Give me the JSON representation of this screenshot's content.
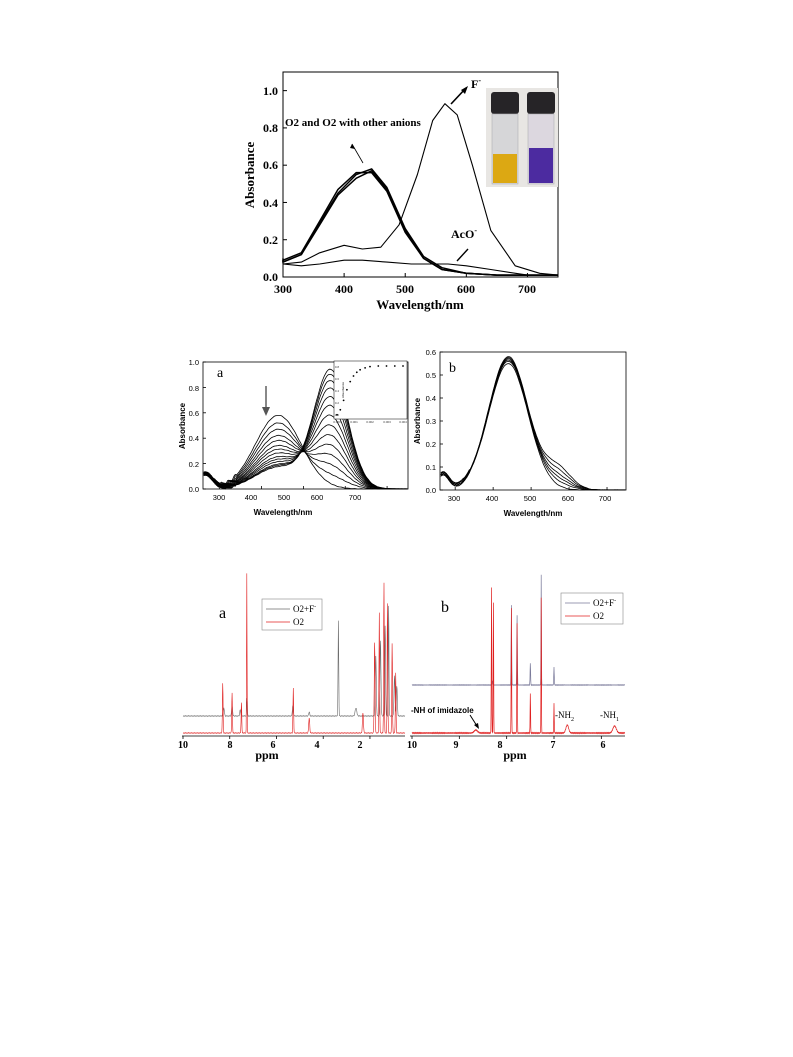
{
  "figure": {
    "top": {
      "annotations": {
        "o2": "O2 and O2 with other anions",
        "f": "F",
        "f_sup": "-",
        "aco": "AcO",
        "aco_sup": "-"
      },
      "chart_data": {
        "type": "line",
        "xlabel": "Wavelength/nm",
        "ylabel": "Absorbance",
        "xlim": [
          300,
          750
        ],
        "ylim": [
          0,
          1.1
        ],
        "xticks": [
          "300",
          "400",
          "500",
          "600",
          "700"
        ],
        "yticks": [
          "0.0",
          "0.2",
          "0.4",
          "0.6",
          "0.8",
          "1.0"
        ],
        "series": [
          {
            "x": [
              270,
              300,
              330,
              360,
              390,
              420,
              445,
              470,
              500,
              530,
              560,
              600,
              650,
              700,
              750
            ],
            "y": [
              0.09,
              0.08,
              0.12,
              0.28,
              0.44,
              0.53,
              0.57,
              0.47,
              0.25,
              0.1,
              0.04,
              0.02,
              0.01,
              0.01,
              0.01
            ]
          },
          {
            "x": [
              270,
              300,
              330,
              360,
              390,
              420,
              445,
              470,
              500,
              530,
              560,
              600,
              650,
              700,
              750
            ],
            "y": [
              0.09,
              0.08,
              0.12,
              0.29,
              0.45,
              0.55,
              0.58,
              0.48,
              0.26,
              0.11,
              0.05,
              0.02,
              0.01,
              0.01,
              0.01
            ]
          },
          {
            "x": [
              270,
              300,
              330,
              360,
              390,
              420,
              445,
              470,
              500,
              530,
              560,
              600,
              650,
              700,
              750
            ],
            "y": [
              0.1,
              0.09,
              0.13,
              0.3,
              0.47,
              0.56,
              0.56,
              0.46,
              0.24,
              0.1,
              0.04,
              0.02,
              0.01,
              0.01,
              0.01
            ]
          },
          {
            "x": [
              270,
              300,
              330,
              360,
              400,
              430,
              460,
              490,
              520,
              545,
              565,
              585,
              610,
              640,
              680,
              720,
              750
            ],
            "y": [
              0.09,
              0.07,
              0.08,
              0.13,
              0.17,
              0.15,
              0.16,
              0.28,
              0.55,
              0.84,
              0.93,
              0.87,
              0.6,
              0.25,
              0.06,
              0.02,
              0.01
            ]
          },
          {
            "x": [
              270,
              300,
              330,
              360,
              400,
              430,
              470,
              510,
              540,
              570,
              600,
              640,
              700,
              750
            ],
            "y": [
              0.08,
              0.07,
              0.06,
              0.07,
              0.09,
              0.09,
              0.08,
              0.07,
              0.07,
              0.07,
              0.06,
              0.04,
              0.01,
              0.01
            ]
          }
        ]
      }
    },
    "mid_a": {
      "label": "a",
      "chart_data": {
        "type": "line",
        "xlabel": "Wavelength/nm",
        "ylabel": "Absorbance",
        "xlim": [
          260,
          750
        ],
        "ylim": [
          0,
          1.0
        ],
        "xticks": [
          "300",
          "400",
          "500",
          "600",
          "700"
        ],
        "yticks": [
          "0.0",
          "0.2",
          "0.4",
          "0.6",
          "0.8",
          "1.0"
        ],
        "series": [
          {
            "peak1": 0.58,
            "peak2": 0.0
          },
          {
            "peak1": 0.52,
            "peak2": 0.08
          },
          {
            "peak1": 0.47,
            "peak2": 0.16
          },
          {
            "peak1": 0.42,
            "peak2": 0.24
          },
          {
            "peak1": 0.38,
            "peak2": 0.32
          },
          {
            "peak1": 0.34,
            "peak2": 0.4
          },
          {
            "peak1": 0.31,
            "peak2": 0.48
          },
          {
            "peak1": 0.28,
            "peak2": 0.56
          },
          {
            "peak1": 0.25,
            "peak2": 0.64
          },
          {
            "peak1": 0.23,
            "peak2": 0.71
          },
          {
            "peak1": 0.21,
            "peak2": 0.78
          },
          {
            "peak1": 0.19,
            "peak2": 0.84
          },
          {
            "peak1": 0.18,
            "peak2": 0.89
          },
          {
            "peak1": 0.17,
            "peak2": 0.93
          }
        ]
      },
      "inset": {
        "ylabel": "Absorbance",
        "xticks": [
          "0.000",
          "0.001",
          "0.002",
          "0.003",
          "0.004"
        ],
        "yticks": [
          "0.8",
          "0.6",
          "0.4",
          "0.2",
          "0.0"
        ],
        "chart_data": {
          "type": "scatter",
          "x": [
            0.0,
            0.0002,
            0.0004,
            0.0006,
            0.0008,
            0.001,
            0.0012,
            0.0014,
            0.0017,
            0.002,
            0.0025,
            0.003,
            0.0035,
            0.004
          ],
          "y": [
            0.02,
            0.1,
            0.25,
            0.42,
            0.55,
            0.64,
            0.7,
            0.74,
            0.77,
            0.79,
            0.81,
            0.82,
            0.83,
            0.83
          ]
        }
      }
    },
    "mid_b": {
      "label": "b",
      "chart_data": {
        "type": "line",
        "xlabel": "Wavelength/nm",
        "ylabel": "Absorbance",
        "xlim": [
          260,
          750
        ],
        "ylim": [
          0,
          0.6
        ],
        "xticks": [
          "300",
          "400",
          "500",
          "600",
          "700"
        ],
        "yticks": [
          "0.0",
          "0.1",
          "0.2",
          "0.3",
          "0.4",
          "0.5",
          "0.6"
        ],
        "series": [
          {
            "peak": 0.55,
            "shoulder": 0.0
          },
          {
            "peak": 0.56,
            "shoulder": 0.02
          },
          {
            "peak": 0.565,
            "shoulder": 0.035
          },
          {
            "peak": 0.57,
            "shoulder": 0.05
          },
          {
            "peak": 0.575,
            "shoulder": 0.07
          },
          {
            "peak": 0.58,
            "shoulder": 0.09
          }
        ]
      }
    },
    "nmr_a": {
      "label": "a",
      "xlabel": "ppm",
      "xticks": [
        "10",
        "8",
        "6",
        "4",
        "2"
      ],
      "legend": {
        "s1": "O2+F",
        "s1_sup": "-",
        "s2": "O2"
      },
      "colors": {
        "s1": "#6b6b6b",
        "s2": "#e02020"
      }
    },
    "nmr_b": {
      "label": "b",
      "xlabel": "ppm",
      "xticks": [
        "10",
        "9",
        "8",
        "7",
        "6"
      ],
      "legend": {
        "s1": "O2+F",
        "s1_sup": "-",
        "s2": "O2"
      },
      "colors": {
        "s1": "#7a7a9a",
        "s2": "#e02020"
      },
      "annotations": {
        "nh": "-NH of imidazole",
        "nh2": "-NH",
        "nh2_sub": "2",
        "nh1": "-NH",
        "nh1_sub": "1"
      }
    }
  }
}
